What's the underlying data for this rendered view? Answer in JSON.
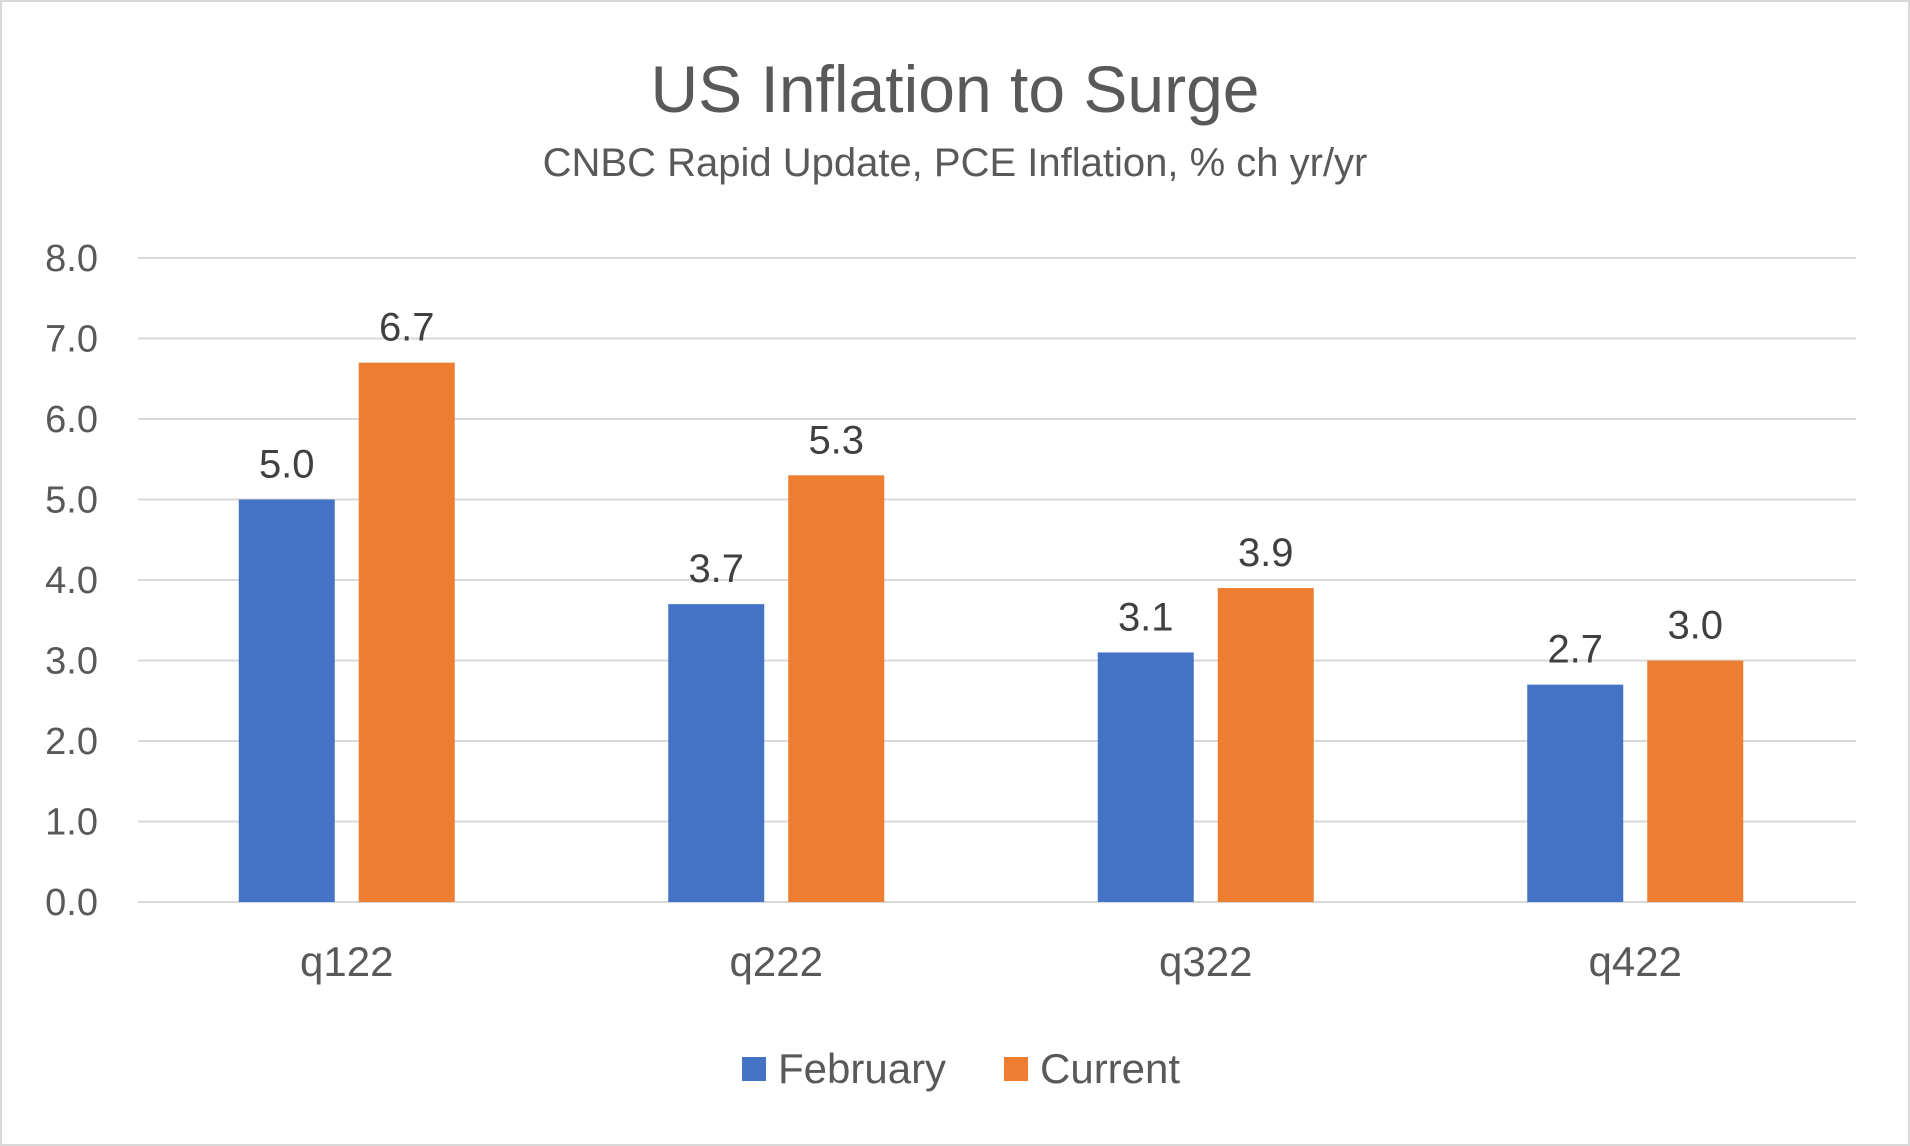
{
  "chart_data": {
    "type": "bar",
    "title": "US Inflation to Surge",
    "subtitle": "CNBC Rapid Update, PCE Inflation, % ch yr/yr",
    "categories": [
      "q122",
      "q222",
      "q322",
      "q422"
    ],
    "series": [
      {
        "name": "February",
        "color": "#4472c4",
        "values": [
          5.0,
          3.7,
          3.1,
          2.7
        ],
        "labels": [
          "5.0",
          "3.7",
          "3.1",
          "2.7"
        ]
      },
      {
        "name": "Current",
        "color": "#ed7d31",
        "values": [
          6.7,
          5.3,
          3.9,
          3.0
        ],
        "labels": [
          "6.7",
          "5.3",
          "3.9",
          "3.0"
        ]
      }
    ],
    "ylim": [
      0,
      8
    ],
    "yticks": [
      "0.0",
      "1.0",
      "2.0",
      "3.0",
      "4.0",
      "5.0",
      "6.0",
      "7.0",
      "8.0"
    ],
    "grid": true,
    "legend_position": "bottom"
  }
}
